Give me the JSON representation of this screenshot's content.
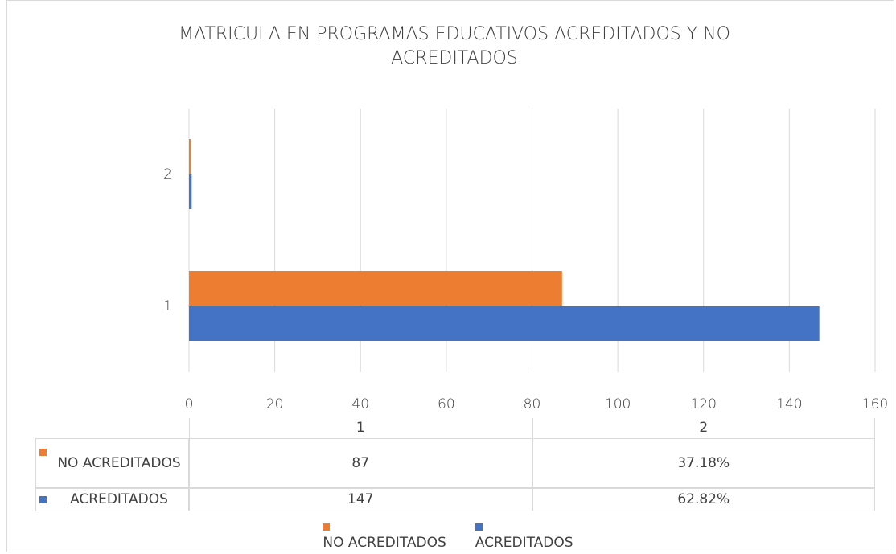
{
  "chart_data": {
    "type": "bar",
    "orientation": "horizontal",
    "title": "MATRICULA EN PROGRAMAS EDUCATIVOS ACREDITADOS Y NO ACREDITADOS",
    "categories": [
      "1",
      "2"
    ],
    "series": [
      {
        "name": "NO ACREDITADOS",
        "color": "#ed7d31",
        "values": [
          87,
          0.3718
        ],
        "value_labels": [
          "87",
          "37.18%"
        ]
      },
      {
        "name": "ACREDITADOS",
        "color": "#4472c4",
        "values": [
          147,
          0.6282
        ],
        "value_labels": [
          "147",
          "62.82%"
        ]
      }
    ],
    "xlim": [
      0,
      160
    ],
    "xticks": [
      0,
      20,
      40,
      60,
      80,
      100,
      120,
      140,
      160
    ],
    "grid": true,
    "legend": "bottom",
    "data_table": true
  }
}
